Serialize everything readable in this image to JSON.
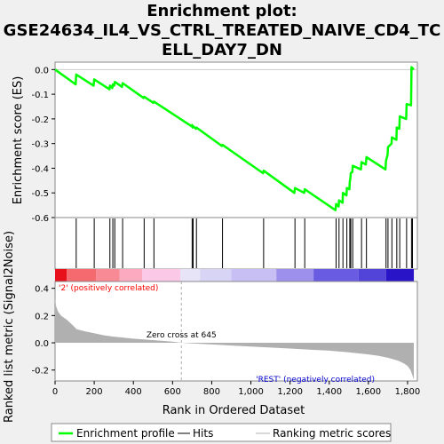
{
  "chart_data": {
    "type": "line",
    "title_lines": [
      "Enrichment plot:",
      "GSE24634_IL4_VS_CTRL_TREATED_NAIVE_CD4_TC",
      "ELL_DAY7_DN"
    ],
    "es_panel": {
      "ylabel": "Enrichment score (ES)",
      "ylim": [
        -0.6,
        0.03
      ],
      "yticks": [
        0.0,
        -0.1,
        -0.2,
        -0.3,
        -0.4,
        -0.5,
        -0.6
      ],
      "ytick_labels": [
        "0.0",
        "-0.1",
        "-0.2",
        "-0.3",
        "-0.4",
        "-0.5",
        "-0.6"
      ],
      "line_color": "#00ff00"
    },
    "metric_panel": {
      "ylabel": "Ranked list metric (Signal2Noise)",
      "ylim": [
        -0.28,
        0.45
      ],
      "yticks": [
        0.4,
        0.2,
        0.0,
        -0.2
      ],
      "ytick_labels": [
        "0.4",
        "0.2",
        "0.0",
        "-0.2"
      ],
      "zero_cross_label": "Zero cross at 645",
      "zero_cross": 645,
      "positive_label": "'2' (positively correlated)",
      "negative_label": "'REST' (negatively correlated)",
      "positive_color": "#ff0000",
      "negative_color": "#0000ff",
      "fill_color": "#b0b0b0"
    },
    "xlabel": "Rank in Ordered Dataset",
    "xlim": [
      0,
      1850
    ],
    "xticks": [
      0,
      200,
      400,
      600,
      800,
      1000,
      1200,
      1400,
      1600,
      1800
    ],
    "xtick_labels": [
      "0",
      "200",
      "400",
      "600",
      "800",
      "1,000",
      "1,200",
      "1,400",
      "1,600",
      "1,800"
    ],
    "n_genes": 1832,
    "hits": [
      108,
      200,
      280,
      295,
      305,
      345,
      455,
      505,
      700,
      705,
      722,
      855,
      1065,
      1225,
      1275,
      1435,
      1450,
      1470,
      1490,
      1505,
      1510,
      1520,
      1565,
      1590,
      1690,
      1700,
      1720,
      1745,
      1760,
      1795,
      1820,
      1825
    ],
    "es_curve": [
      [
        0,
        0.0
      ],
      [
        105,
        -0.06
      ],
      [
        108,
        -0.02
      ],
      [
        197,
        -0.065
      ],
      [
        200,
        -0.04
      ],
      [
        278,
        -0.08
      ],
      [
        280,
        -0.065
      ],
      [
        292,
        -0.075
      ],
      [
        295,
        -0.06
      ],
      [
        302,
        -0.065
      ],
      [
        305,
        -0.05
      ],
      [
        342,
        -0.07
      ],
      [
        345,
        -0.055
      ],
      [
        452,
        -0.115
      ],
      [
        455,
        -0.11
      ],
      [
        502,
        -0.135
      ],
      [
        505,
        -0.13
      ],
      [
        697,
        -0.23
      ],
      [
        700,
        -0.225
      ],
      [
        703,
        -0.235
      ],
      [
        705,
        -0.23
      ],
      [
        720,
        -0.24
      ],
      [
        722,
        -0.235
      ],
      [
        852,
        -0.31
      ],
      [
        855,
        -0.305
      ],
      [
        1062,
        -0.42
      ],
      [
        1065,
        -0.41
      ],
      [
        1222,
        -0.5
      ],
      [
        1225,
        -0.48
      ],
      [
        1272,
        -0.5
      ],
      [
        1275,
        -0.485
      ],
      [
        1432,
        -0.57
      ],
      [
        1435,
        -0.545
      ],
      [
        1448,
        -0.555
      ],
      [
        1450,
        -0.53
      ],
      [
        1468,
        -0.54
      ],
      [
        1470,
        -0.5
      ],
      [
        1488,
        -0.51
      ],
      [
        1490,
        -0.48
      ],
      [
        1503,
        -0.485
      ],
      [
        1505,
        -0.455
      ],
      [
        1508,
        -0.44
      ],
      [
        1510,
        -0.42
      ],
      [
        1518,
        -0.415
      ],
      [
        1520,
        -0.39
      ],
      [
        1562,
        -0.405
      ],
      [
        1565,
        -0.375
      ],
      [
        1587,
        -0.385
      ],
      [
        1590,
        -0.355
      ],
      [
        1687,
        -0.405
      ],
      [
        1690,
        -0.37
      ],
      [
        1698,
        -0.345
      ],
      [
        1700,
        -0.315
      ],
      [
        1718,
        -0.3
      ],
      [
        1720,
        -0.275
      ],
      [
        1743,
        -0.285
      ],
      [
        1745,
        -0.235
      ],
      [
        1758,
        -0.24
      ],
      [
        1760,
        -0.19
      ],
      [
        1793,
        -0.2
      ],
      [
        1795,
        -0.14
      ],
      [
        1818,
        -0.145
      ],
      [
        1820,
        0.01
      ],
      [
        1832,
        0.0
      ]
    ],
    "metric_profile": [
      [
        0,
        0.33
      ],
      [
        5,
        0.27
      ],
      [
        15,
        0.23
      ],
      [
        30,
        0.2
      ],
      [
        60,
        0.17
      ],
      [
        90,
        0.13
      ],
      [
        110,
        0.1
      ],
      [
        150,
        0.085
      ],
      [
        200,
        0.07
      ],
      [
        250,
        0.055
      ],
      [
        300,
        0.045
      ],
      [
        400,
        0.03
      ],
      [
        500,
        0.02
      ],
      [
        600,
        0.008
      ],
      [
        645,
        0.0
      ],
      [
        700,
        -0.005
      ],
      [
        800,
        -0.012
      ],
      [
        900,
        -0.02
      ],
      [
        1000,
        -0.028
      ],
      [
        1100,
        -0.035
      ],
      [
        1200,
        -0.042
      ],
      [
        1300,
        -0.05
      ],
      [
        1400,
        -0.058
      ],
      [
        1500,
        -0.07
      ],
      [
        1600,
        -0.085
      ],
      [
        1650,
        -0.095
      ],
      [
        1700,
        -0.11
      ],
      [
        1750,
        -0.13
      ],
      [
        1780,
        -0.15
      ],
      [
        1800,
        -0.17
      ],
      [
        1815,
        -0.2
      ],
      [
        1825,
        -0.24
      ],
      [
        1832,
        -0.27
      ]
    ],
    "colorbar": [
      {
        "end": 60,
        "color": "#e8101a"
      },
      {
        "end": 210,
        "color": "#f46a6e"
      },
      {
        "end": 330,
        "color": "#f88a96"
      },
      {
        "end": 445,
        "color": "#fbaac0"
      },
      {
        "end": 640,
        "color": "#fbc8e8"
      },
      {
        "end": 740,
        "color": "#e8e4f8"
      },
      {
        "end": 900,
        "color": "#d8d4f6"
      },
      {
        "end": 1130,
        "color": "#c8c0f4"
      },
      {
        "end": 1320,
        "color": "#9c90ec"
      },
      {
        "end": 1550,
        "color": "#6a5ce2"
      },
      {
        "end": 1690,
        "color": "#5244d8"
      },
      {
        "end": 1832,
        "color": "#2a14c8"
      }
    ],
    "legend": [
      {
        "label": "Enrichment profile",
        "color": "#00ff00"
      },
      {
        "label": "Hits",
        "color": "#000000"
      },
      {
        "label": "Ranking metric scores",
        "color": "#b0b0b0"
      }
    ]
  }
}
